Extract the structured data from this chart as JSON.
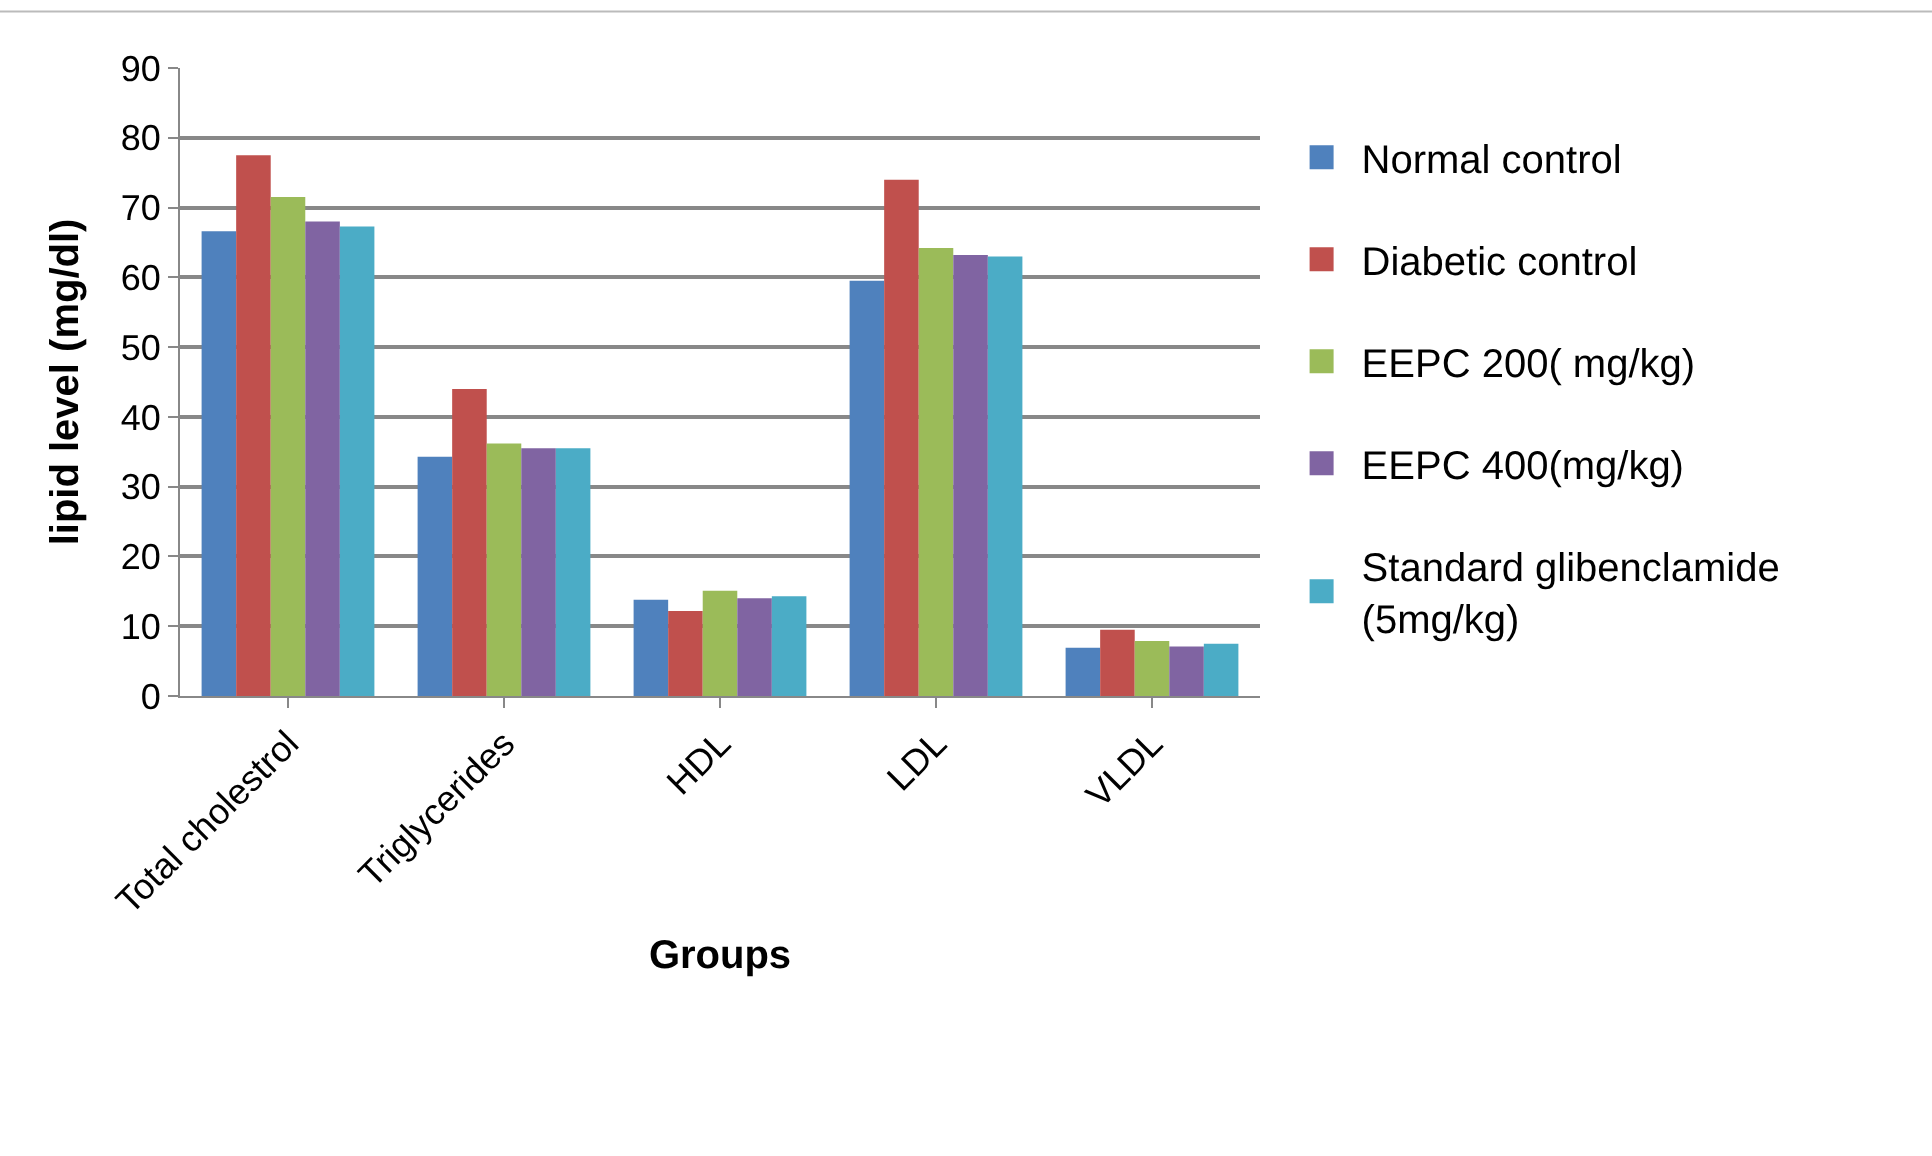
{
  "chart_data": {
    "type": "bar",
    "xlabel": "Groups",
    "ylabel": "lipid level (mg/dl)",
    "categories": [
      "Total cholestrol",
      "Triglycerides",
      "HDL",
      "LDL",
      "VLDL"
    ],
    "series": [
      {
        "name": "Normal control",
        "color": "#4f81bd",
        "values": [
          66.6,
          34.3,
          13.8,
          59.5,
          6.9
        ]
      },
      {
        "name": "Diabetic control",
        "color": "#c0504d",
        "values": [
          77.5,
          44.0,
          12.2,
          74.0,
          9.5
        ]
      },
      {
        "name": "EEPC 200( mg/kg)",
        "color": "#9bbb59",
        "values": [
          71.5,
          36.2,
          15.1,
          64.2,
          7.9
        ]
      },
      {
        "name": "EEPC 400(mg/kg)",
        "color": "#8064a2",
        "values": [
          68.0,
          35.5,
          14.0,
          63.2,
          7.1
        ]
      },
      {
        "name": "Standard glibenclamide (5mg/kg)",
        "color": "#4bacc6",
        "values": [
          67.3,
          35.5,
          14.3,
          63.0,
          7.5
        ]
      }
    ],
    "ylim": [
      0,
      90
    ],
    "yticks": [
      0,
      10,
      20,
      30,
      40,
      50,
      60,
      70,
      80,
      90
    ],
    "grid": "y",
    "legend": "right"
  }
}
